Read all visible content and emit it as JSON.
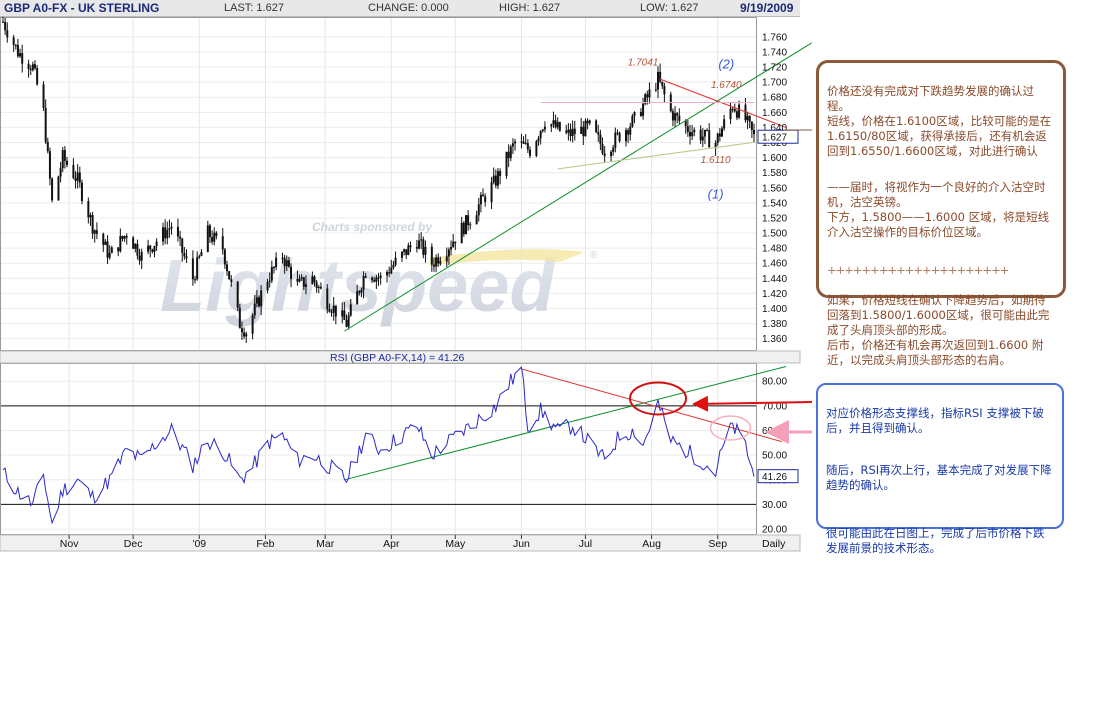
{
  "header": {
    "symbol": "GBP A0-FX - UK STERLING",
    "last": "LAST: 1.627",
    "change": "CHANGE: 0.000",
    "high": "HIGH: 1.627",
    "low": "LOW: 1.627",
    "date": "9/19/2009"
  },
  "watermark": {
    "sponsor": "Charts sponsored by",
    "brand": "Lightspeed"
  },
  "chart_data": [
    {
      "type": "candlestick",
      "name": "price",
      "y_ticks": [
        1.36,
        1.38,
        1.4,
        1.42,
        1.44,
        1.46,
        1.48,
        1.5,
        1.52,
        1.54,
        1.56,
        1.58,
        1.6,
        1.62,
        1.64,
        1.66,
        1.68,
        1.7,
        1.72,
        1.74,
        1.76
      ],
      "ylim": [
        1.345,
        1.785
      ],
      "last_value_label": "1.627",
      "path": [
        [
          "2008-10-01",
          1.78
        ],
        [
          "2008-10-08",
          1.74
        ],
        [
          "2008-10-15",
          1.72
        ],
        [
          "2008-10-20",
          1.66
        ],
        [
          "2008-10-24",
          1.54
        ],
        [
          "2008-10-29",
          1.6
        ],
        [
          "2008-11-05",
          1.57
        ],
        [
          "2008-11-12",
          1.51
        ],
        [
          "2008-11-20",
          1.47
        ],
        [
          "2008-11-28",
          1.5
        ],
        [
          "2008-12-05",
          1.47
        ],
        [
          "2008-12-12",
          1.49
        ],
        [
          "2008-12-19",
          1.51
        ],
        [
          "2008-12-29",
          1.44
        ],
        [
          "2009-01-05",
          1.5
        ],
        [
          "2009-01-12",
          1.48
        ],
        [
          "2009-01-20",
          1.38
        ],
        [
          "2009-01-23",
          1.37
        ],
        [
          "2009-02-02",
          1.44
        ],
        [
          "2009-02-09",
          1.47
        ],
        [
          "2009-02-16",
          1.43
        ],
        [
          "2009-02-23",
          1.44
        ],
        [
          "2009-03-02",
          1.41
        ],
        [
          "2009-03-11",
          1.38
        ],
        [
          "2009-03-20",
          1.45
        ],
        [
          "2009-03-27",
          1.44
        ],
        [
          "2009-04-06",
          1.47
        ],
        [
          "2009-04-13",
          1.49
        ],
        [
          "2009-04-20",
          1.46
        ],
        [
          "2009-04-27",
          1.48
        ],
        [
          "2009-05-08",
          1.52
        ],
        [
          "2009-05-20",
          1.57
        ],
        [
          "2009-05-29",
          1.62
        ],
        [
          "2009-06-05",
          1.61
        ],
        [
          "2009-06-12",
          1.65
        ],
        [
          "2009-06-22",
          1.63
        ],
        [
          "2009-07-03",
          1.64
        ],
        [
          "2009-07-10",
          1.61
        ],
        [
          "2009-07-17",
          1.63
        ],
        [
          "2009-07-24",
          1.65
        ],
        [
          "2009-08-04",
          1.7041
        ],
        [
          "2009-08-10",
          1.66
        ],
        [
          "2009-08-17",
          1.64
        ],
        [
          "2009-08-24",
          1.63
        ],
        [
          "2009-08-31",
          1.62
        ],
        [
          "2009-09-08",
          1.67
        ],
        [
          "2009-09-14",
          1.65
        ],
        [
          "2009-09-18",
          1.627
        ]
      ],
      "annotations": [
        {
          "label": "1.7041",
          "date": "2009-07-28",
          "value": 1.722
        },
        {
          "label": "1.6740",
          "date": "2009-09-05",
          "value": 1.692
        },
        {
          "label": "(2)",
          "date": "2009-09-05",
          "value": 1.718
        },
        {
          "label": "1.6110",
          "date": "2009-08-31",
          "value": 1.593
        },
        {
          "label": "(1)",
          "date": "2009-08-31",
          "value": 1.546
        }
      ],
      "trendlines": [
        {
          "color": "#0a8f2a",
          "from": [
            "2009-03-10",
            1.37
          ],
          "to": [
            "2009-10-15",
            1.752
          ]
        },
        {
          "color": "#e03030",
          "from": [
            "2009-08-05",
            1.704
          ],
          "to": [
            "2009-10-03",
            1.64
          ]
        },
        {
          "color": "#b8c88a",
          "from": [
            "2009-06-18",
            1.585
          ],
          "to": [
            "2009-10-03",
            1.626
          ]
        },
        {
          "color": "#f4a8c8",
          "from": [
            "2009-06-10",
            1.673
          ],
          "to": [
            "2009-09-18",
            1.673
          ]
        }
      ]
    },
    {
      "type": "line",
      "name": "rsi",
      "title": "RSI (GBP A0-FX,14) = 41.26",
      "y_ticks": [
        20,
        30,
        40,
        50,
        60,
        70,
        80
      ],
      "ylim": [
        18,
        87
      ],
      "last_value_label": "41.26",
      "reference_lines": [
        30,
        70
      ],
      "points": [
        [
          "2008-10-01",
          43
        ],
        [
          "2008-10-08",
          35
        ],
        [
          "2008-10-15",
          30
        ],
        [
          "2008-10-20",
          42
        ],
        [
          "2008-10-24",
          22
        ],
        [
          "2008-10-29",
          36
        ],
        [
          "2008-11-05",
          40
        ],
        [
          "2008-11-12",
          33
        ],
        [
          "2008-11-20",
          40
        ],
        [
          "2008-11-28",
          52
        ],
        [
          "2008-12-05",
          48
        ],
        [
          "2008-12-12",
          55
        ],
        [
          "2008-12-19",
          60
        ],
        [
          "2008-12-29",
          46
        ],
        [
          "2009-01-05",
          56
        ],
        [
          "2009-01-12",
          52
        ],
        [
          "2009-01-20",
          40
        ],
        [
          "2009-01-26",
          45
        ],
        [
          "2009-02-02",
          55
        ],
        [
          "2009-02-09",
          58
        ],
        [
          "2009-02-16",
          48
        ],
        [
          "2009-02-23",
          50
        ],
        [
          "2009-03-02",
          46
        ],
        [
          "2009-03-11",
          40
        ],
        [
          "2009-03-20",
          58
        ],
        [
          "2009-03-27",
          52
        ],
        [
          "2009-04-06",
          58
        ],
        [
          "2009-04-13",
          62
        ],
        [
          "2009-04-20",
          50
        ],
        [
          "2009-04-27",
          55
        ],
        [
          "2009-05-08",
          62
        ],
        [
          "2009-05-20",
          70
        ],
        [
          "2009-05-27",
          80
        ],
        [
          "2009-06-01",
          85
        ],
        [
          "2009-06-04",
          62
        ],
        [
          "2009-06-10",
          68
        ],
        [
          "2009-06-18",
          60
        ],
        [
          "2009-06-25",
          62
        ],
        [
          "2009-07-03",
          55
        ],
        [
          "2009-07-10",
          48
        ],
        [
          "2009-07-17",
          58
        ],
        [
          "2009-07-24",
          60
        ],
        [
          "2009-07-28",
          54
        ],
        [
          "2009-08-04",
          71
        ],
        [
          "2009-08-10",
          56
        ],
        [
          "2009-08-17",
          52
        ],
        [
          "2009-08-24",
          48
        ],
        [
          "2009-08-31",
          43
        ],
        [
          "2009-09-03",
          52
        ],
        [
          "2009-09-08",
          62
        ],
        [
          "2009-09-14",
          54
        ],
        [
          "2009-09-18",
          41.26
        ]
      ],
      "trendlines": [
        {
          "color": "#0a8f2a",
          "from": [
            "2009-03-10",
            40
          ],
          "to": [
            "2009-10-03",
            86
          ]
        },
        {
          "color": "#e03030",
          "from": [
            "2009-06-01",
            85
          ],
          "to": [
            "2009-10-01",
            55.5
          ]
        }
      ],
      "highlights": [
        {
          "shape": "ellipse",
          "color": "#d01010",
          "date": "2009-08-04",
          "value": 73
        },
        {
          "shape": "ellipse",
          "color": "#f4b0c0",
          "date": "2009-09-07",
          "value": 61
        }
      ]
    }
  ],
  "x_axis": {
    "ticks": [
      {
        "label": "Nov",
        "date": "2008-11-01"
      },
      {
        "label": "Dec",
        "date": "2008-12-01"
      },
      {
        "label": "'09",
        "date": "2009-01-01"
      },
      {
        "label": "Feb",
        "date": "2009-02-01"
      },
      {
        "label": "Mar",
        "date": "2009-03-01"
      },
      {
        "label": "Apr",
        "date": "2009-04-01"
      },
      {
        "label": "May",
        "date": "2009-05-01"
      },
      {
        "label": "Jun",
        "date": "2009-06-01"
      },
      {
        "label": "Jul",
        "date": "2009-07-01"
      },
      {
        "label": "Aug",
        "date": "2009-08-01"
      },
      {
        "label": "Sep",
        "date": "2009-09-01"
      }
    ],
    "period_label": "Daily"
  },
  "notes": {
    "brown": {
      "p1": "价格还没有完成对下跌趋势发展的确认过程。\n短线，价格在1.6100区域，比较可能的是在1.6150/80区域，获得承接后，还有机会返回到1.6550/1.6600区域，对此进行确认",
      "p2": "——届时，将视作为一个良好的介入沽空时机，沽空英镑。\n下方，1.5800——1.6000 区域，将是短线介入沽空操作的目标价位区域。",
      "divider": "+++++++++++++++++++++",
      "p3": "如果，价格短线在确认下降趋势后，如期待回落到1.5800/1.6000区域，很可能由此完成了头肩顶头部的形成。\n后市，价格还有机会再次返回到1.6600 附近，以完成头肩顶头部形态的右肩。",
      "border_color": "#8a5a3a"
    },
    "blue": {
      "p1": "对应价格形态支撑线，指标RSI 支撑被下破后，并且得到确认。",
      "p2": "随后，RSI再次上行，基本完成了对发展下降趋势的确认。",
      "p3": "很可能由此在日图上，完成了后市价格下跌发展前景的技术形态。",
      "border_color": "#4a72d8"
    }
  }
}
